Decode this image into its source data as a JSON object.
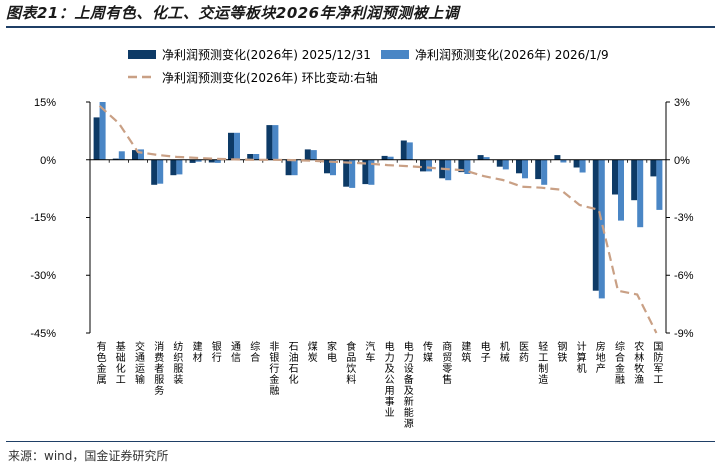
{
  "header": {
    "title": "图表21：上周有色、化工、交运等板块2026年净利润预测被上调"
  },
  "footer": {
    "source": "来源：wind，国金证券研究所"
  },
  "colors": {
    "s1": "#0d3a66",
    "s2": "#4a86c5",
    "line": "#c9a085",
    "axis": "#000000"
  },
  "chart_data": {
    "type": "bar",
    "title": "图表21：上周有色、化工、交运等板块2026年净利润预测被上调",
    "legend": [
      "净利润预测变化(2026年) 2025/12/31",
      "净利润预测变化(2026年) 2026/1/9",
      "净利润预测变化(2026年) 环比变动:右轴"
    ],
    "legend_position": "top",
    "y_left": {
      "ticks": [
        "15%",
        "0%",
        "-15%",
        "-30%",
        "-45%"
      ],
      "values": [
        15,
        0,
        -15,
        -30,
        -45
      ],
      "ylim": [
        -45,
        15
      ]
    },
    "y_right": {
      "ticks": [
        "3%",
        "0%",
        "-3%",
        "-6%",
        "-9%"
      ],
      "values": [
        3,
        0,
        -3,
        -6,
        -9
      ],
      "ylim": [
        -9,
        3
      ]
    },
    "categories": [
      "有色金属",
      "基础化工",
      "交通运输",
      "消费者服务",
      "纺织服装",
      "建材",
      "银行",
      "通信",
      "综合",
      "非银行金融",
      "石油石化",
      "煤炭",
      "家电",
      "食品饮料",
      "汽车",
      "电力及公用事业",
      "电力设备及新能源",
      "传媒",
      "商贸零售",
      "建筑",
      "电子",
      "机械",
      "医药",
      "轻工制造",
      "钢铁",
      "计算机",
      "房地产",
      "综合金融",
      "农林牧渔",
      "国防军工"
    ],
    "series": [
      {
        "name": "净利润预测变化(2026年) 2025/12/31",
        "axis": "left",
        "kind": "bar",
        "values": [
          11,
          0.3,
          2.5,
          -6.5,
          -4,
          -0.8,
          -0.7,
          7,
          1.5,
          9,
          -4,
          2.7,
          -3.5,
          -7,
          -6.3,
          1,
          5,
          -3,
          -4.8,
          -3.2,
          1.2,
          -1.8,
          -3.5,
          -5,
          1.2,
          -2,
          -34,
          -9,
          -10.5,
          -4.3
        ]
      },
      {
        "name": "净利润预测变化(2026年) 2026/1/9",
        "axis": "left",
        "kind": "bar",
        "values": [
          15,
          2.2,
          2.7,
          -6.2,
          -3.8,
          -0.5,
          -0.8,
          7,
          1.5,
          9,
          -4,
          2.5,
          -4,
          -7.3,
          -6.5,
          0.8,
          4.5,
          -3,
          -5.3,
          -3.7,
          0.7,
          -2.5,
          -4.8,
          -6.5,
          -0.7,
          -3.3,
          -36,
          -15.8,
          -17.5,
          -13
        ]
      },
      {
        "name": "净利润预测变化(2026年) 环比变动:右轴",
        "axis": "right",
        "kind": "line",
        "values": [
          2.8,
          1.9,
          0.4,
          0.25,
          0.15,
          0.1,
          0.05,
          0.02,
          0,
          0,
          -0.02,
          -0.05,
          -0.1,
          -0.15,
          -0.2,
          -0.28,
          -0.33,
          -0.4,
          -0.48,
          -0.55,
          -0.85,
          -1.05,
          -1.4,
          -1.45,
          -1.55,
          -2.35,
          -2.6,
          -6.8,
          -7.0,
          -9.0
        ]
      }
    ]
  }
}
